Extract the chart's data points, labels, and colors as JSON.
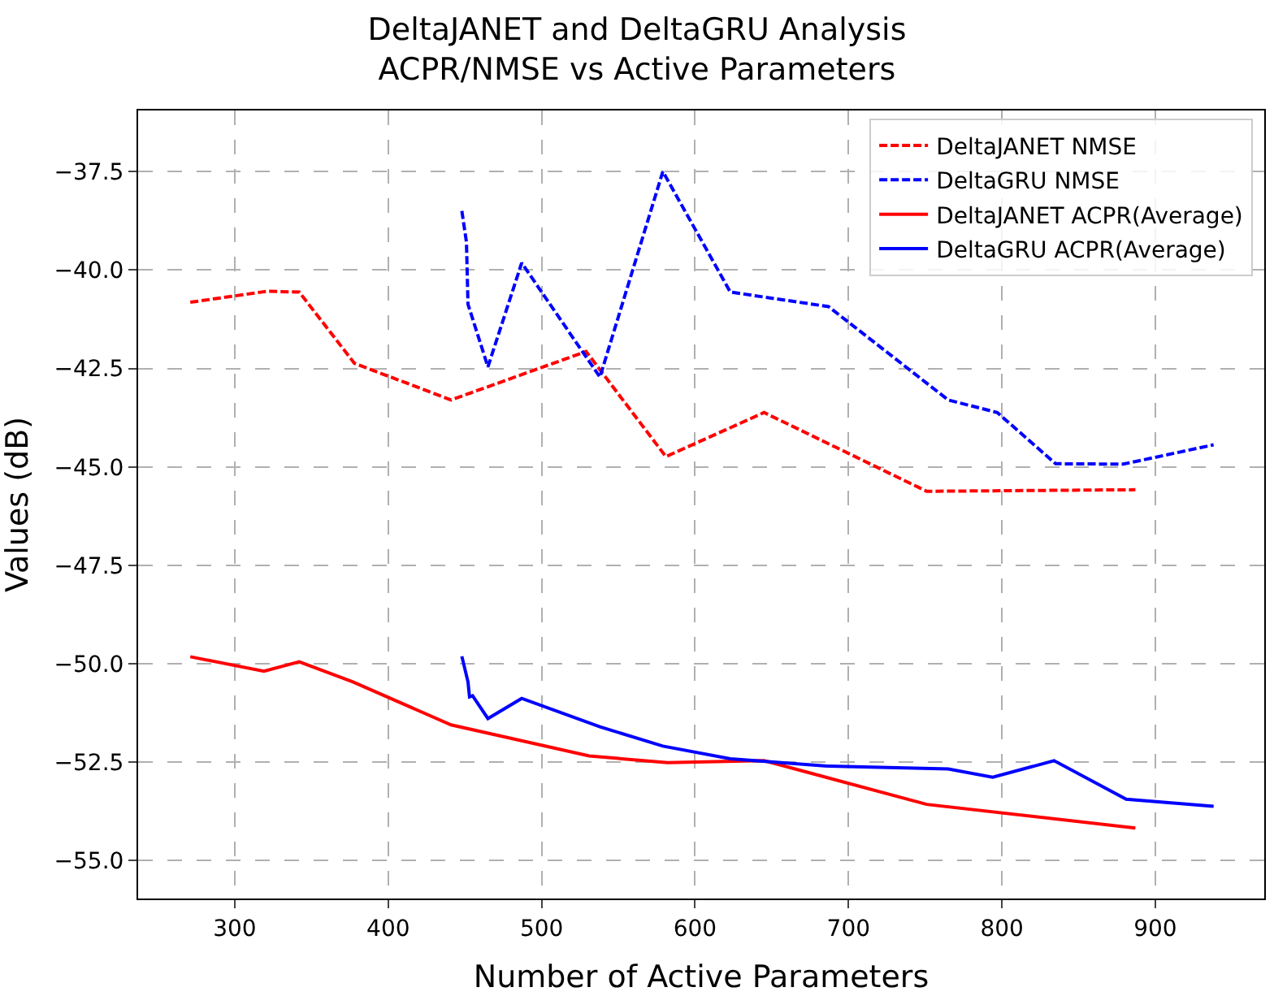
{
  "chart_data": {
    "type": "line",
    "title": "DeltaJANET and DeltaGRU Analysis\nACPR/NMSE vs Active Parameters",
    "xlabel": "Number of Active Parameters",
    "ylabel": "Values (dB)",
    "xlim": [
      237,
      971
    ],
    "xticks": [
      300,
      400,
      500,
      600,
      700,
      800,
      900
    ],
    "ylim": [
      -55.96,
      -35.95
    ],
    "yticks": [
      {
        "value": -55,
        "label": "−55.0"
      },
      {
        "value": -52.5,
        "label": "−52.5"
      },
      {
        "value": -50,
        "label": "−50.0"
      },
      {
        "value": -47.5,
        "label": "−47.5"
      },
      {
        "value": -45,
        "label": "−45.0"
      },
      {
        "value": -42.5,
        "label": "−42.5"
      },
      {
        "value": -40,
        "label": "−40.0"
      },
      {
        "value": -37.5,
        "label": "−37.5"
      }
    ],
    "grid": true,
    "legend": "top right",
    "series": [
      {
        "name": "DeltaJANET NMSE",
        "color": "#ff0000",
        "line_style": "dashed",
        "x": [
          271,
          321,
          342,
          378,
          441,
          529,
          581,
          645,
          751,
          887
        ],
        "values": [
          -40.82,
          -40.54,
          -40.56,
          -42.37,
          -43.3,
          -42.07,
          -44.74,
          -43.62,
          -45.62,
          -45.58
        ]
      },
      {
        "name": "DeltaGRU NMSE",
        "color": "#0000ff",
        "line_style": "dashed",
        "x": [
          448,
          451,
          452,
          465,
          487,
          538,
          579,
          623,
          687,
          765,
          797,
          835,
          879,
          938
        ],
        "values": [
          -38.5,
          -39.29,
          -40.87,
          -42.46,
          -39.82,
          -42.72,
          -37.5,
          -40.56,
          -40.93,
          -43.3,
          -43.62,
          -44.92,
          -44.93,
          -44.44
        ]
      },
      {
        "name": "DeltaJANET ACPR(Average)",
        "color": "#ff0000",
        "line_style": "solid",
        "x": [
          271,
          319,
          342,
          377,
          441,
          531,
          582,
          645,
          751,
          887
        ],
        "values": [
          -49.82,
          -50.19,
          -49.95,
          -50.46,
          -51.55,
          -52.34,
          -52.51,
          -52.46,
          -53.57,
          -54.17
        ]
      },
      {
        "name": "DeltaGRU ACPR(Average)",
        "color": "#0000ff",
        "line_style": "solid",
        "x": [
          448,
          452,
          453,
          455,
          465,
          487,
          538,
          579,
          623,
          687,
          765,
          794,
          834,
          881,
          938
        ],
        "values": [
          -49.81,
          -50.46,
          -50.84,
          -50.81,
          -51.39,
          -50.88,
          -51.6,
          -52.09,
          -52.41,
          -52.6,
          -52.67,
          -52.88,
          -52.46,
          -53.44,
          -53.62
        ]
      }
    ]
  }
}
